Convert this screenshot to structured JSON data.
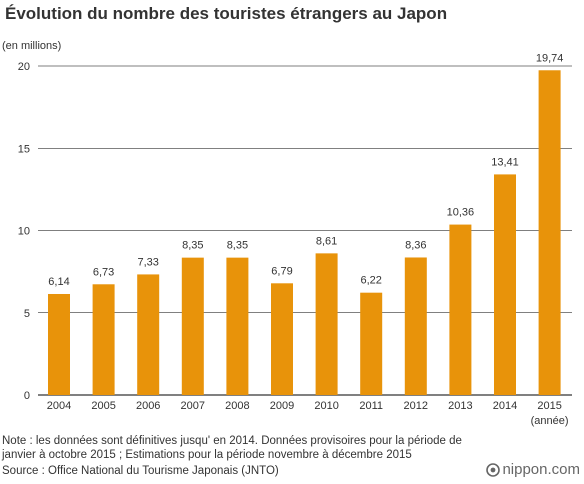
{
  "header": {
    "title": "Évolution du nombre des touristes étrangers au Japon"
  },
  "chart_data": {
    "type": "bar",
    "unit_label": "(en millions)",
    "categories": [
      "2004",
      "2005",
      "2006",
      "2007",
      "2008",
      "2009",
      "2010",
      "2011",
      "2012",
      "2013",
      "2014",
      "2015"
    ],
    "category_suffix_last": "(année)",
    "values": [
      6.14,
      6.73,
      7.33,
      8.35,
      8.35,
      6.79,
      8.61,
      6.22,
      8.36,
      10.36,
      13.41,
      19.74
    ],
    "value_labels": [
      "6,14",
      "6,73",
      "7,33",
      "8,35",
      "8,35",
      "6,79",
      "8,61",
      "6,22",
      "8,36",
      "10,36",
      "13,41",
      "19,74"
    ],
    "y_ticks": [
      0,
      5,
      10,
      15,
      20
    ],
    "ylim": [
      0,
      20
    ],
    "grid": true,
    "bar_color": "#E8930A",
    "grid_color": "#000000"
  },
  "footer": {
    "note": "Note : les données sont définitives jusqu' en 2014. Données provisoires pour la période de janvier à octobre 2015 ; Estimations pour la période novembre à décembre 2015",
    "source": "Source : Office National du Tourisme Japonais (JNTO)",
    "logo_text": "nippon.com",
    "logo_icon": "nippon-logo-icon"
  }
}
